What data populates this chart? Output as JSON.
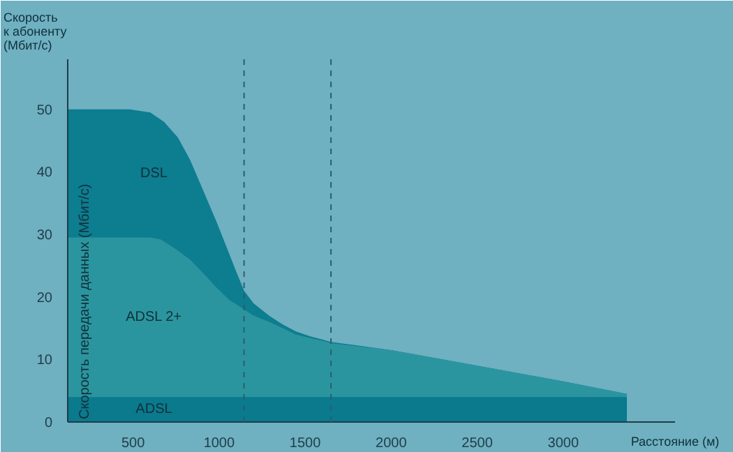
{
  "chart_data": {
    "type": "area",
    "ylabel": "Скорость к абоненту (Мбит/с)",
    "xlabel": "Расстояние (м)",
    "annotations": [
      "Скорость передачи данных (Мбит/с)"
    ],
    "series": [
      {
        "name": "DSL",
        "color": "#0d7d90",
        "x": [
          120,
          300,
          480,
          600,
          680,
          760,
          830,
          900,
          985,
          1050,
          1100,
          1145,
          1200,
          1290,
          1370,
          1445,
          1530,
          1600,
          1650,
          2000,
          2500,
          3000,
          3370
        ],
        "values": [
          50,
          50,
          50,
          49.5,
          48,
          45.5,
          42,
          37.5,
          32,
          27.5,
          24,
          21,
          19,
          17,
          15.6,
          14.5,
          13.7,
          13.2,
          12.8,
          11.5,
          9,
          6.5,
          4.5
        ]
      },
      {
        "name": "ADSL 2+",
        "color": "#2b959f",
        "x": [
          120,
          400,
          600,
          660,
          740,
          830,
          900,
          985,
          1060,
          1145,
          1200,
          1290,
          1370,
          1445,
          1530,
          1600,
          1650,
          2000,
          2500,
          3000,
          3370
        ],
        "values": [
          29.5,
          29.5,
          29.5,
          29.2,
          27.8,
          26,
          24,
          21.5,
          19.5,
          18,
          17,
          16,
          15,
          14,
          13.4,
          13,
          12.6,
          11.5,
          9,
          6.5,
          4.5
        ]
      },
      {
        "name": "ADSL",
        "color": "#0a7a8c",
        "x": [
          120,
          3370
        ],
        "values": [
          4,
          4
        ]
      }
    ],
    "xlim": [
      120,
      3650
    ],
    "ylim": [
      0,
      58
    ],
    "xticks": [
      500,
      1000,
      1500,
      2000,
      2500,
      3000
    ],
    "yticks": [
      0,
      10,
      20,
      30,
      40,
      50
    ],
    "grid": false,
    "ref_lines": [
      {
        "axis": "x",
        "value": 1145,
        "line_style": "dashed",
        "color": "#2a5f6e"
      },
      {
        "axis": "x",
        "value": 1650,
        "line_style": "dashed",
        "color": "#2a5f6e"
      }
    ]
  }
}
